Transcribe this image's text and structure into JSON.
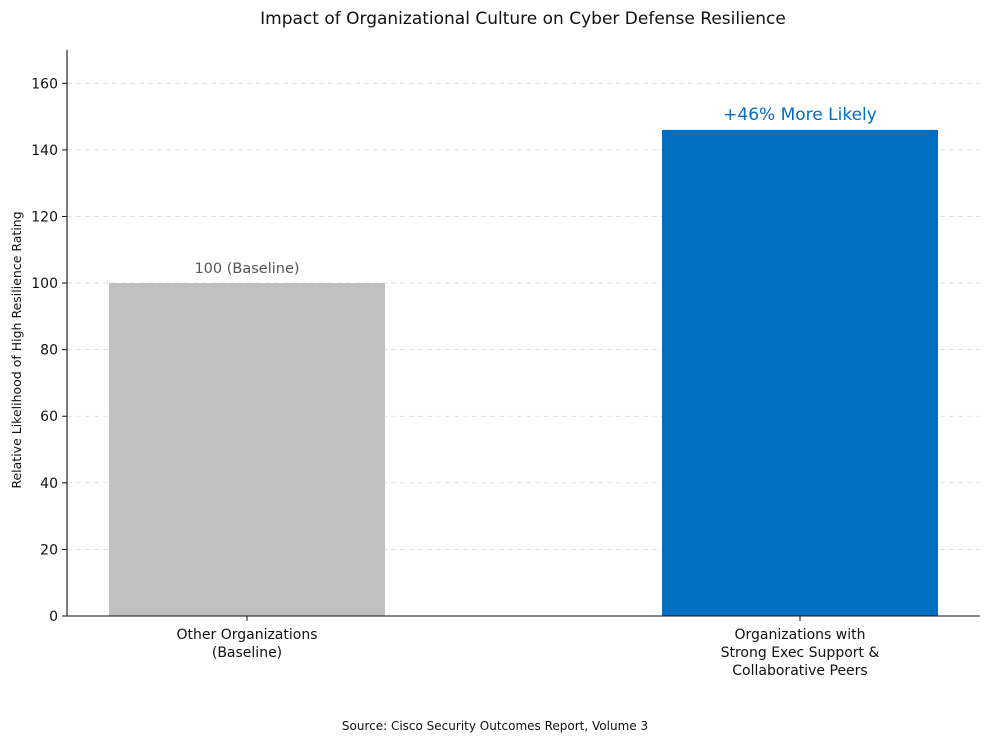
{
  "chart_data": {
    "type": "bar",
    "title": "Impact of Organizational Culture on Cyber Defense Resilience",
    "ylabel": "Relative Likelihood of High Resilience Rating",
    "xlabel": "",
    "ylim": [
      0,
      170
    ],
    "yticks": [
      0,
      20,
      40,
      60,
      80,
      100,
      120,
      140,
      160
    ],
    "grid": true,
    "categories": [
      [
        "Other Organizations",
        "(Baseline)"
      ],
      [
        "Organizations with",
        "Strong Exec Support &",
        "Collaborative Peers"
      ]
    ],
    "values": [
      100,
      146
    ],
    "colors": [
      "#c0c0c0",
      "#006ec1"
    ],
    "data_labels": [
      "100 (Baseline)",
      "+46% More Likely"
    ],
    "data_label_colors": [
      "#555555",
      "#006ec1"
    ],
    "source": "Source: Cisco Security Outcomes Report, Volume 3"
  }
}
